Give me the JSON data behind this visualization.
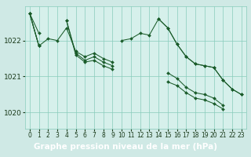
{
  "bg_color": "#cfe9e5",
  "plot_bg_color": "#d6f0eb",
  "grid_color": "#88ccbb",
  "line_color": "#1a5c2a",
  "marker_color": "#1a5c2a",
  "xlabel": "Graphe pression niveau de la mer (hPa)",
  "xlabel_fontsize": 7.5,
  "xtick_fontsize": 5.5,
  "ytick_fontsize": 6.5,
  "xlim": [
    -0.5,
    23.5
  ],
  "ylim": [
    1019.55,
    1022.95
  ],
  "yticks": [
    1020,
    1021,
    1022
  ],
  "xticks": [
    0,
    1,
    2,
    3,
    4,
    5,
    6,
    7,
    8,
    9,
    10,
    11,
    12,
    13,
    14,
    15,
    16,
    17,
    18,
    19,
    20,
    21,
    22,
    23
  ],
  "label_bar_color": "#3a7a4a",
  "label_text_color": "#ffffff",
  "series": [
    [
      1022.75,
      1022.2,
      null,
      null,
      null,
      null,
      null,
      null,
      null,
      null,
      1022.0,
      1022.05,
      1022.2,
      1022.15,
      1022.6,
      1022.35,
      1021.9,
      1021.55,
      1021.35,
      1021.3,
      1021.25,
      1020.9,
      1020.65,
      1020.5
    ],
    [
      1022.75,
      1021.85,
      1022.05,
      1022.0,
      1022.35,
      1021.7,
      1021.55,
      1021.65,
      1021.5,
      1021.4,
      null,
      null,
      null,
      null,
      1022.6,
      1022.35,
      1021.9,
      1021.55,
      1021.35,
      1021.3,
      1021.25,
      1020.9,
      1020.65,
      1020.5
    ],
    [
      1022.75,
      1021.85,
      null,
      null,
      1022.55,
      1021.65,
      1021.45,
      1021.55,
      1021.4,
      1021.3,
      null,
      null,
      null,
      null,
      null,
      1021.1,
      1020.95,
      1020.7,
      1020.55,
      1020.5,
      1020.4,
      1020.2,
      null,
      null
    ],
    [
      1022.75,
      1021.85,
      null,
      null,
      1022.55,
      1021.6,
      1021.4,
      1021.45,
      1021.3,
      1021.2,
      null,
      null,
      null,
      null,
      null,
      1020.85,
      1020.75,
      1020.55,
      1020.4,
      1020.35,
      1020.25,
      1020.1,
      null,
      null
    ]
  ]
}
